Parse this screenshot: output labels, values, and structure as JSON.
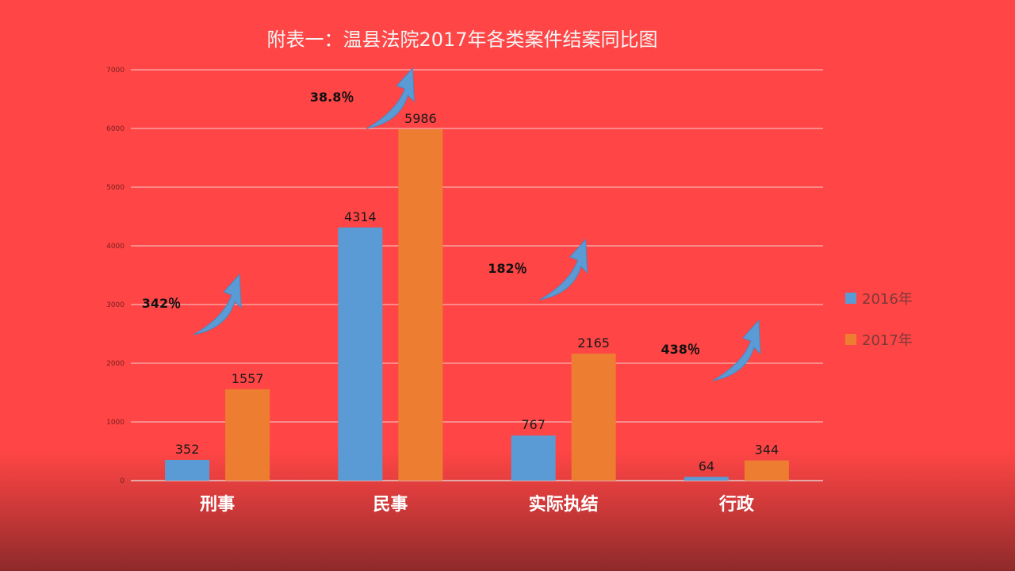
{
  "chart_data": {
    "type": "bar",
    "title": "附表一：温县法院2017年各类案件结案同比图",
    "categories": [
      "刑事",
      "民事",
      "实际执结",
      "行政"
    ],
    "series": [
      {
        "name": "2016年",
        "values": [
          352,
          4314,
          767,
          64
        ],
        "color": "#5b9bd5"
      },
      {
        "name": "2017年",
        "values": [
          1557,
          5986,
          2165,
          344
        ],
        "color": "#ed7d31"
      }
    ],
    "ylim": [
      0,
      7000
    ],
    "yticks": [
      0,
      1000,
      2000,
      3000,
      4000,
      5000,
      6000,
      7000
    ],
    "grid": true,
    "legend": "right",
    "annotations": [
      {
        "text": "342％",
        "category": "刑事"
      },
      {
        "text": "38.8％",
        "category": "民事"
      },
      {
        "text": "182％",
        "category": "实际执结"
      },
      {
        "text": "438％",
        "category": "行政"
      }
    ],
    "arrow_color": "#5b9bd5"
  }
}
